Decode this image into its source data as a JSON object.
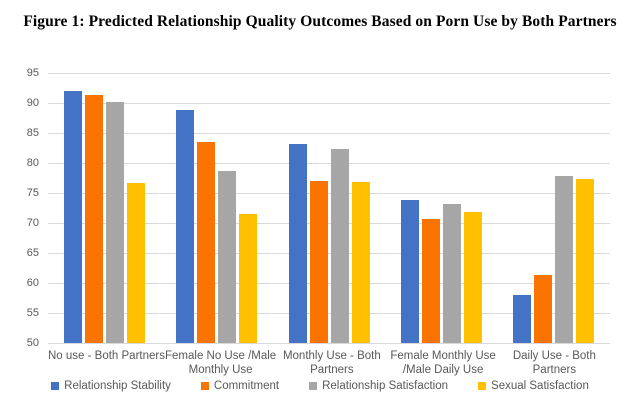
{
  "figure": {
    "title": "Figure 1: Predicted Relationship Quality Outcomes Based on Porn Use by Both Partners"
  },
  "chart_data": {
    "type": "bar",
    "title": "Figure 1: Predicted Relationship Quality Outcomes Based on Porn Use by Both Partners",
    "categories": [
      "No use - Both Partners",
      "Female No Use /Male Monthly Use",
      "Monthly Use - Both Partners",
      "Female Monthly Use /Male Daily Use",
      "Daily Use - Both Partners"
    ],
    "category_tick_lines": [
      [
        "No use - Both Partners"
      ],
      [
        "Female No Use /Male",
        "Monthly Use"
      ],
      [
        "Monthly Use - Both",
        "Partners"
      ],
      [
        "Female Monthly Use",
        "/Male Daily Use"
      ],
      [
        "Daily Use - Both",
        "Partners"
      ]
    ],
    "series": [
      {
        "name": "Relationship Stability",
        "color": "#4472C4",
        "values": [
          92.0,
          88.9,
          83.2,
          73.9,
          58.0
        ]
      },
      {
        "name": "Commitment",
        "color": "#FB7300",
        "values": [
          91.3,
          83.5,
          77.0,
          70.6,
          61.3
        ]
      },
      {
        "name": "Relationship Satisfaction",
        "color": "#A6A6A6",
        "values": [
          90.2,
          78.6,
          82.4,
          73.2,
          77.9
        ]
      },
      {
        "name": "Sexual Satisfaction",
        "color": "#FFC000",
        "values": [
          76.7,
          71.5,
          76.9,
          71.8,
          77.3
        ]
      }
    ],
    "xlabel": "",
    "ylabel": "",
    "ylim": [
      50,
      95
    ],
    "yticks": [
      50,
      55,
      60,
      65,
      70,
      75,
      80,
      85,
      90,
      95
    ],
    "grid": true,
    "legend_position": "bottom"
  },
  "colors": {
    "gridline": "#d9d9d9",
    "axis_text": "#595959",
    "title_text": "#000000",
    "background": "#ffffff"
  }
}
